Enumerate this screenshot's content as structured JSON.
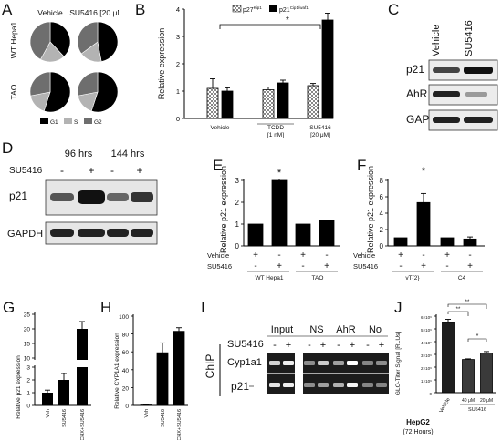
{
  "panels": {
    "A": {
      "label": "A",
      "col_titles": [
        "Vehicle",
        "SU5416 [20 μM]"
      ],
      "row_titles": [
        "WT Hepa1",
        "TAO"
      ],
      "legend": [
        "G1",
        "S",
        "G2"
      ],
      "colors": {
        "G1": "#000000",
        "S": "#b3b3b3",
        "G2": "#6e6e6e"
      },
      "pies": [
        {
          "row": "WT Hepa1",
          "col": "Vehicle",
          "G1": 0.38,
          "S": 0.2,
          "G2": 0.42
        },
        {
          "row": "WT Hepa1",
          "col": "SU5416 [20 μM]",
          "G1": 0.47,
          "S": 0.18,
          "G2": 0.35
        },
        {
          "row": "TAO",
          "col": "Vehicle",
          "G1": 0.55,
          "S": 0.17,
          "G2": 0.28
        },
        {
          "row": "TAO",
          "col": "SU5416 [20 μM]",
          "G1": 0.55,
          "S": 0.17,
          "G2": 0.28
        }
      ]
    },
    "B": {
      "label": "B",
      "chart_data": {
        "type": "bar",
        "ylabel": "Relative expression",
        "ylim": [
          0,
          4
        ],
        "yticks": [
          "0",
          "1",
          "2",
          "3",
          "4"
        ],
        "groups": [
          "Vehicle",
          "TCDD [1 nM]",
          "SU5416 [20 μM]"
        ],
        "series": [
          {
            "name": "p27Kip1",
            "values": [
              1.1,
              1.05,
              1.2
            ],
            "errors": [
              0.35,
              0.1,
              0.08
            ]
          },
          {
            "name": "p21Cip1/waf1",
            "values": [
              1.0,
              1.3,
              3.6
            ],
            "errors": [
              0.12,
              0.1,
              0.25
            ]
          }
        ],
        "significance": "*"
      }
    },
    "C": {
      "label": "C",
      "lanes": [
        "Vehicle",
        "SU5416"
      ],
      "bands": [
        "p21",
        "AhR",
        "GAPDH"
      ]
    },
    "D": {
      "label": "D",
      "time_labels": [
        "96 hrs",
        "144 hrs"
      ],
      "treatment": "SU5416",
      "signs": [
        "-",
        "+",
        "-",
        "+"
      ],
      "bands": [
        "p21",
        "GAPDH"
      ]
    },
    "E": {
      "label": "E",
      "chart_data": {
        "type": "bar",
        "ylabel": "Relative p21 expression",
        "ylim": [
          0,
          3
        ],
        "yticks": [
          "0",
          "1",
          "2",
          "3"
        ],
        "values": [
          1.0,
          3.0,
          1.0,
          1.15
        ],
        "errors": [
          0,
          0.06,
          0,
          0.04
        ],
        "row_labels": [
          "Vehicle",
          "SU5416"
        ],
        "vehicle": [
          "+",
          "-",
          "+",
          "-"
        ],
        "su5416": [
          "-",
          "+",
          "-",
          "+"
        ],
        "groups": [
          "WT Hepa1",
          "TAO"
        ],
        "significance": "*"
      }
    },
    "F": {
      "label": "F",
      "chart_data": {
        "type": "bar",
        "ylabel": "Relative p21 expression",
        "ylim": [
          0,
          8
        ],
        "yticks": [
          "0",
          "2",
          "4",
          "6",
          "8"
        ],
        "values": [
          1.0,
          5.3,
          1.0,
          0.85
        ],
        "errors": [
          0,
          1.1,
          0,
          0.25
        ],
        "row_labels": [
          "Vehicle",
          "SU5416"
        ],
        "vehicle": [
          "+",
          "-",
          "+",
          "-"
        ],
        "su5416": [
          "-",
          "+",
          "-",
          "+"
        ],
        "groups": [
          "vT{2}",
          "C4"
        ],
        "significance": "*"
      }
    },
    "G": {
      "label": "G",
      "chart_data": {
        "type": "bar",
        "ylabel": "Relative p21 expression",
        "yticks": [
          "0",
          "1",
          "2",
          "3",
          "10",
          "15",
          "20",
          "25"
        ],
        "categories": [
          "Veh",
          "SU5416",
          "CHX+SU5416"
        ],
        "values": [
          1.0,
          2.0,
          20.0
        ],
        "errors": [
          0.2,
          0.5,
          2.5
        ]
      }
    },
    "H": {
      "label": "H",
      "chart_data": {
        "type": "bar",
        "ylabel": "Relative CYP1A1 expression",
        "ylim": [
          0,
          100
        ],
        "yticks": [
          "0",
          "20",
          "40",
          "60",
          "80",
          "100"
        ],
        "categories": [
          "Veh",
          "SU5416",
          "CHX+SU5416"
        ],
        "values": [
          0.5,
          59,
          83
        ],
        "errors": [
          0.5,
          11,
          4
        ]
      }
    },
    "I": {
      "label": "I",
      "side_label": "ChIP",
      "groups": [
        "Input",
        "NS",
        "AhR",
        "No"
      ],
      "treatment": "SU5416",
      "signs": [
        "-",
        "+",
        "-",
        "+",
        "-",
        "+",
        "-",
        "+"
      ],
      "genes": [
        "Cyp1a1",
        "p21"
      ]
    },
    "J": {
      "label": "J",
      "chart_data": {
        "type": "bar",
        "ylabel": "GLO-Titer Signal [RLUs]",
        "ylim": [
          0,
          6000000
        ],
        "yticks": [
          "0",
          "1×10⁶",
          "2×10⁶",
          "3×10⁶",
          "4×10⁶",
          "5×10⁶",
          "6×10⁶"
        ],
        "categories": [
          "Vehicle",
          "40 μM",
          "20 μM"
        ],
        "values": [
          5500000,
          2600000,
          3100000
        ],
        "errors": [
          250000,
          50000,
          120000
        ],
        "group_label": "SU5416",
        "significance": [
          "**",
          "**",
          "*"
        ],
        "caption_line1": "HepG2",
        "caption_line2": "(72 Hours)"
      }
    }
  }
}
